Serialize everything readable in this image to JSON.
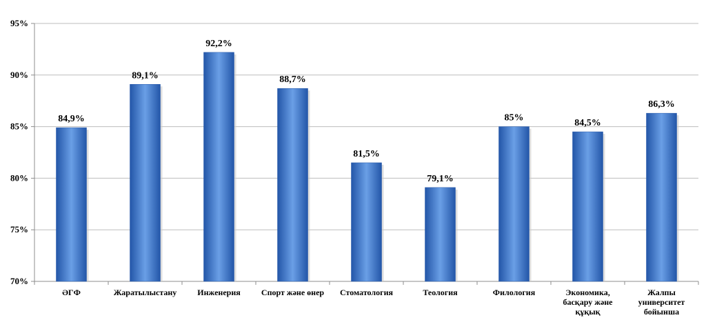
{
  "chart_data": {
    "type": "bar",
    "categories": [
      "ӘГФ",
      "Жаратылыстану",
      "Инженерия",
      "Спорт және өнер",
      "Стоматология",
      "Теология",
      "Филология",
      "Экономика, басқару және құқық",
      "Жалпы университет бойынша"
    ],
    "category_lines": [
      [
        "ӘГФ"
      ],
      [
        "Жаратылыстану"
      ],
      [
        "Инженерия"
      ],
      [
        "Спорт және өнер"
      ],
      [
        "Стоматология"
      ],
      [
        "Теология"
      ],
      [
        "Филология"
      ],
      [
        "Экономика,",
        "басқару және",
        "құқық"
      ],
      [
        "Жалпы",
        "университет",
        "бойынша"
      ]
    ],
    "values": [
      84.9,
      89.1,
      92.2,
      88.7,
      81.5,
      79.1,
      85,
      84.5,
      86.3
    ],
    "data_labels": [
      "84,9%",
      "89,1%",
      "92,2%",
      "88,7%",
      "81,5%",
      "79,1%",
      "85%",
      "84,5%",
      "86,3%"
    ],
    "ylim": [
      70,
      95
    ],
    "yticks": [
      70,
      75,
      80,
      85,
      90,
      95
    ],
    "ytick_labels": [
      "70%",
      "75%",
      "80%",
      "85%",
      "90%",
      "95%"
    ],
    "title": "",
    "xlabel": "",
    "ylabel": "",
    "grid": true,
    "colors": {
      "bar": "#3f7fd6",
      "bar_dark": "#2356a8",
      "bar_light": "#6a9fe6",
      "grid": "#bdbdbd",
      "axis": "#8c8c8c"
    }
  }
}
